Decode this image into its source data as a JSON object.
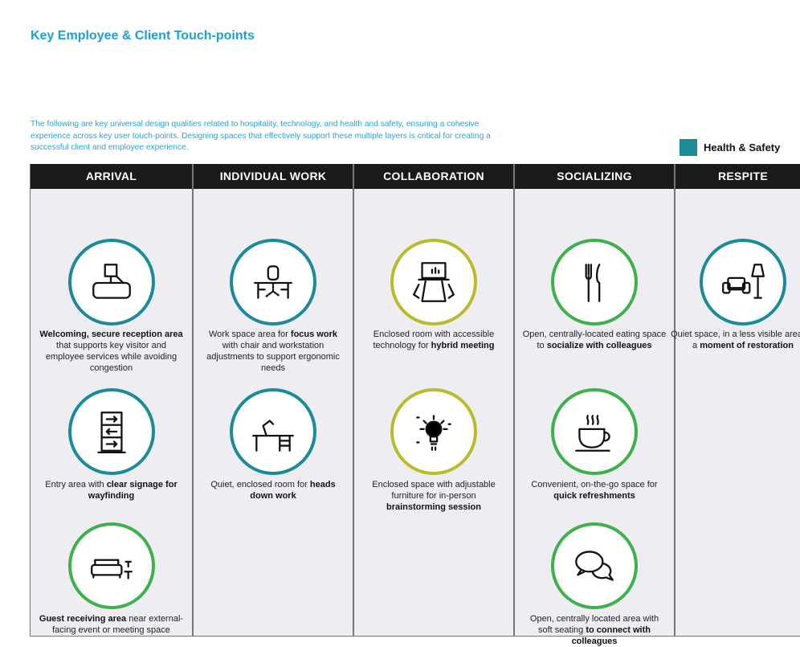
{
  "title": "Key Employee & Client Touch-points",
  "intro": "The following are key universal design qualities related to hospitality, technology, and health and safety, ensuring a cohesive experience across key user touch-points. Designing spaces that effectively support these multiple layers is critical for creating a successful client and employee experience.",
  "legend": {
    "label": "Health & Safety",
    "color": "#1b8b9b"
  },
  "colors": {
    "teal": "#1b8b9b",
    "olive": "#b9bb2c",
    "green": "#3db14b"
  },
  "columns": [
    {
      "header": "ARRIVAL",
      "items": [
        {
          "icon": "reception-desk-icon",
          "color": "teal",
          "desc": [
            {
              "t": "Welcoming, secure reception area",
              "b": true
            },
            {
              "t": " that supports key visitor and employee services while avoiding congestion",
              "b": false
            }
          ]
        },
        {
          "icon": "wayfinding-sign-icon",
          "color": "teal",
          "desc": [
            {
              "t": "Entry area with ",
              "b": false
            },
            {
              "t": "clear signage for wayfinding",
              "b": true
            }
          ]
        },
        {
          "icon": "sofa-icon",
          "color": "green",
          "desc": [
            {
              "t": "Guest receiving area",
              "b": true
            },
            {
              "t": " near external-facing event or meeting space",
              "b": false
            }
          ]
        }
      ]
    },
    {
      "header": "INDIVIDUAL WORK",
      "items": [
        {
          "icon": "desk-chair-icon",
          "color": "teal",
          "desc": [
            {
              "t": "Work space area for ",
              "b": false
            },
            {
              "t": "focus work",
              "b": true
            },
            {
              "t": " with chair and workstation adjustments to support ergonomic needs",
              "b": false
            }
          ]
        },
        {
          "icon": "desk-lamp-icon",
          "color": "teal",
          "desc": [
            {
              "t": "Quiet, enclosed room for ",
              "b": false
            },
            {
              "t": "heads down work",
              "b": true
            }
          ]
        }
      ]
    },
    {
      "header": "COLLABORATION",
      "items": [
        {
          "icon": "meeting-table-screen-icon",
          "color": "olive",
          "desc": [
            {
              "t": "Enclosed room with accessible technology for ",
              "b": false
            },
            {
              "t": "hybrid meeting",
              "b": true
            }
          ]
        },
        {
          "icon": "lightbulb-icon",
          "color": "olive",
          "desc": [
            {
              "t": "Enclosed space with adjustable furniture for in-person ",
              "b": false
            },
            {
              "t": "brainstorming session",
              "b": true
            }
          ]
        }
      ]
    },
    {
      "header": "SOCIALIZING",
      "items": [
        {
          "icon": "fork-knife-icon",
          "color": "green",
          "desc": [
            {
              "t": "Open, centrally-located eating space to ",
              "b": false
            },
            {
              "t": "socialize with colleagues",
              "b": true
            }
          ]
        },
        {
          "icon": "coffee-cup-icon",
          "color": "green",
          "desc": [
            {
              "t": "Convenient, on-the-go space for ",
              "b": false
            },
            {
              "t": "quick refreshments",
              "b": true
            }
          ]
        },
        {
          "icon": "chat-bubbles-icon",
          "color": "green",
          "desc": [
            {
              "t": "Open, centrally located area with soft seating ",
              "b": false
            },
            {
              "t": "to connect with colleagues",
              "b": true
            }
          ]
        }
      ]
    },
    {
      "header": "RESPITE",
      "items": [
        {
          "icon": "armchair-lamp-icon",
          "color": "teal",
          "desc": [
            {
              "t": "Quiet space, in a less visible area for a ",
              "b": false
            },
            {
              "t": "moment of restoration",
              "b": true
            }
          ]
        }
      ]
    }
  ]
}
